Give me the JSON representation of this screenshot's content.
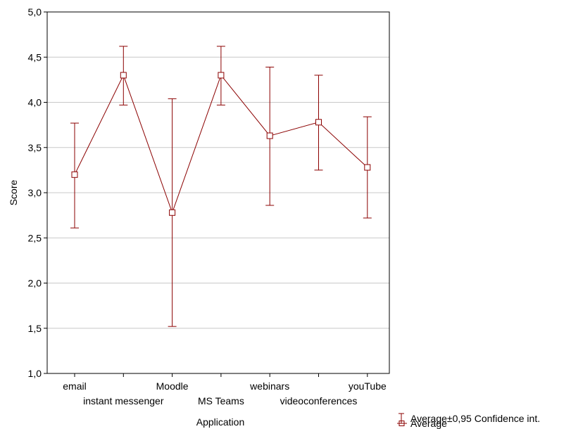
{
  "chart_data": {
    "type": "line",
    "title": "",
    "xlabel": "Application",
    "ylabel": "Score",
    "ylim": [
      1.0,
      5.0
    ],
    "yticks": [
      "1,0",
      "1,5",
      "2,0",
      "2,5",
      "3,0",
      "3,5",
      "4,0",
      "4,5",
      "5,0"
    ],
    "grid": true,
    "categories": [
      "email",
      "instant messenger",
      "Moodle",
      "MS Teams",
      "webinars",
      "videoconferences",
      "youTube"
    ],
    "series": [
      {
        "name": "Average",
        "values": [
          3.2,
          4.3,
          2.78,
          4.3,
          3.63,
          3.78,
          3.28
        ],
        "ci_low": [
          2.61,
          3.97,
          1.52,
          3.97,
          2.86,
          3.25,
          2.72
        ],
        "ci_high": [
          3.77,
          4.62,
          4.04,
          4.62,
          4.39,
          4.3,
          3.84
        ]
      }
    ],
    "legend": {
      "placement": "bottom-right",
      "items": [
        "Average",
        "Average±0,95 Confidence int."
      ]
    },
    "colors": {
      "series": "#8b0000",
      "grid": "#c8c8c8",
      "axis": "#000000"
    }
  }
}
